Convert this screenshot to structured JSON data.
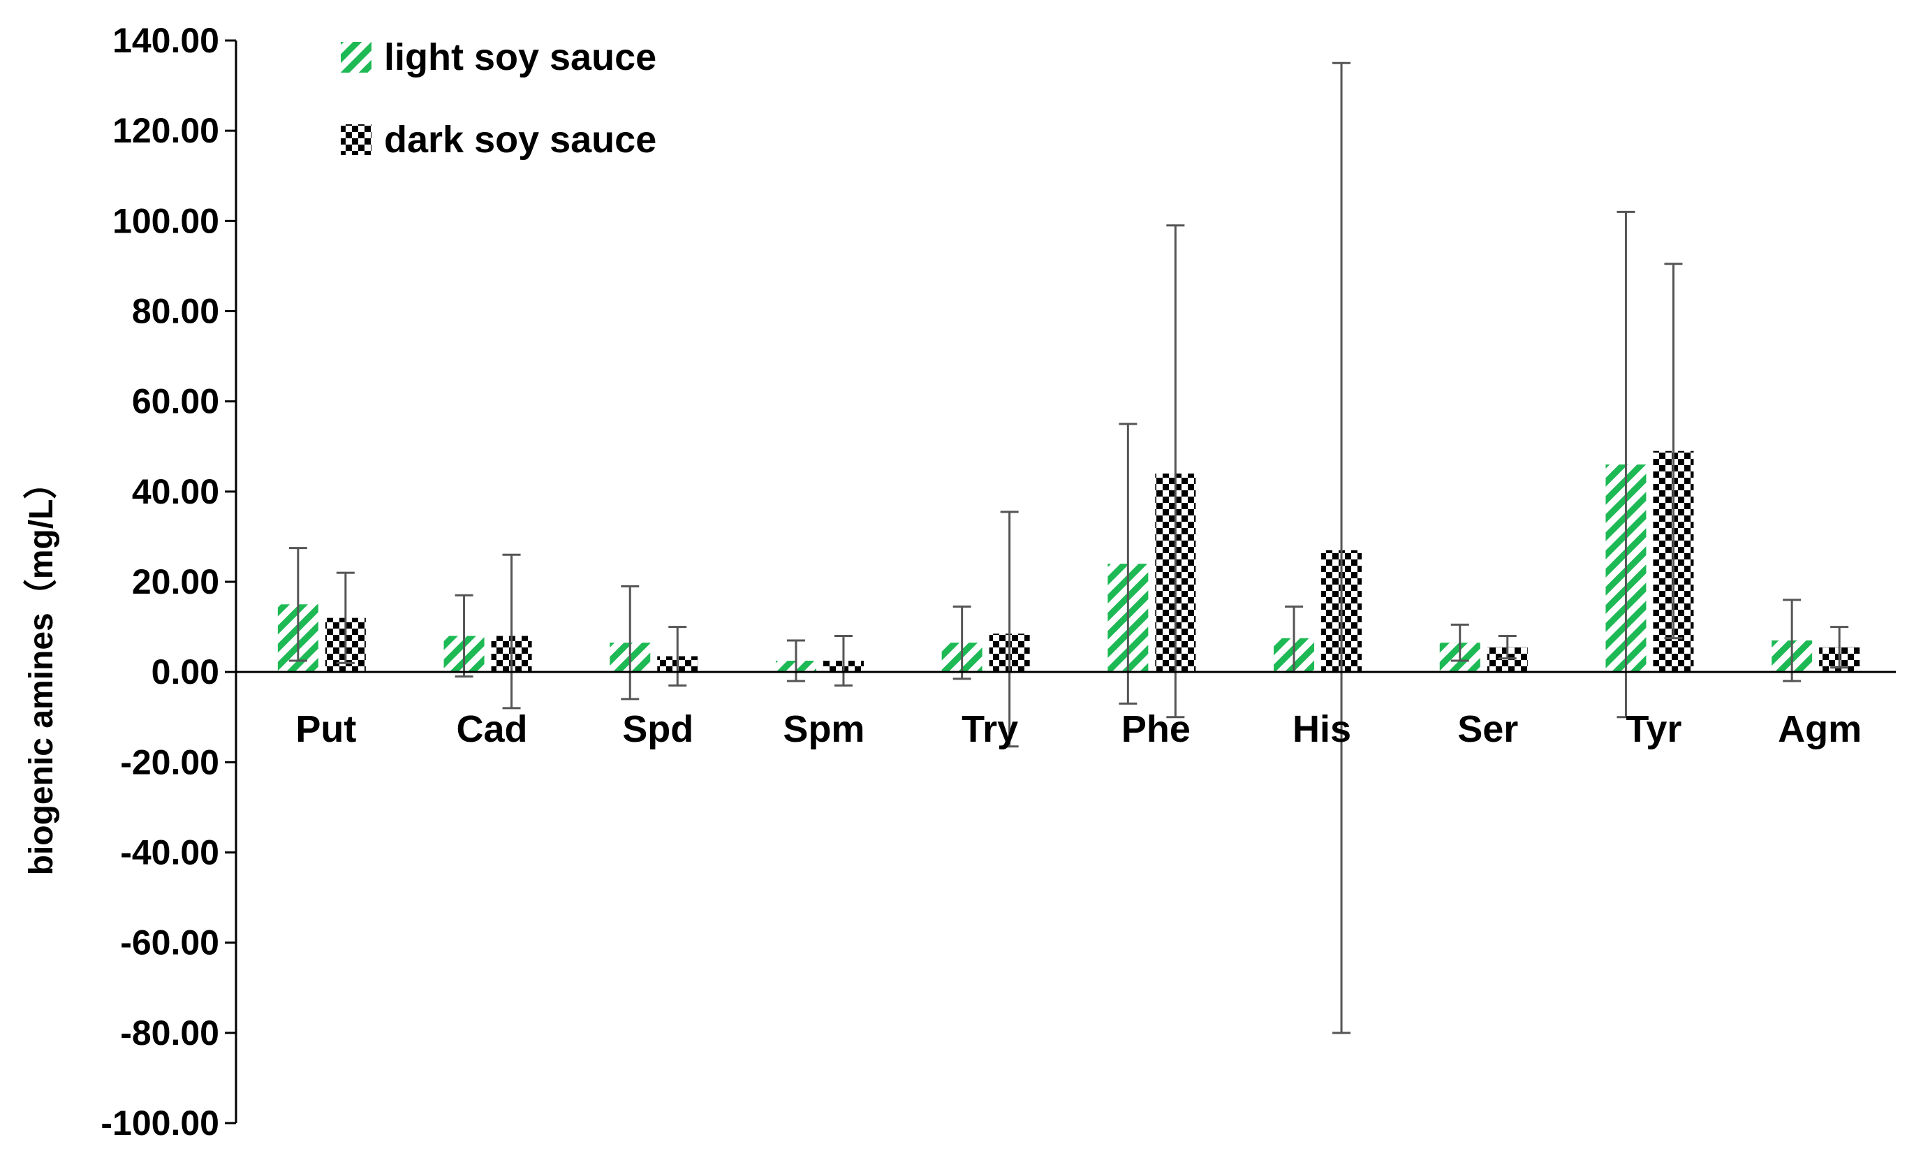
{
  "chart_data": {
    "type": "bar",
    "ylabel": "biogenic amines（mg/L）",
    "ylim": [
      -100,
      140
    ],
    "yticks": [
      -100,
      -80,
      -60,
      -40,
      -20,
      0,
      20,
      40,
      60,
      80,
      100,
      120,
      140
    ],
    "ytick_labels": [
      "-100.00",
      "-80.00",
      "-60.00",
      "-40.00",
      "-20.00",
      "0.00",
      "20.00",
      "40.00",
      "60.00",
      "80.00",
      "100.00",
      "120.00",
      "140.00"
    ],
    "grid": false,
    "legend_position": "top-left",
    "categories": [
      "Put",
      "Cad",
      "Spd",
      "Spm",
      "Try",
      "Phe",
      "His",
      "Ser",
      "Tyr",
      "Agm"
    ],
    "series": [
      {
        "name": "light soy sauce",
        "color": "#1db954",
        "pattern": "diagonal-stripes",
        "values": [
          15.0,
          8.0,
          6.5,
          2.5,
          6.5,
          24.0,
          7.5,
          6.5,
          46.0,
          7.0
        ],
        "err_high": [
          27.5,
          17.0,
          19.0,
          7.0,
          14.5,
          55.0,
          14.5,
          10.5,
          102.0,
          16.0
        ],
        "err_low": [
          2.5,
          -1.0,
          -6.0,
          -2.0,
          -1.5,
          -7.0,
          0.0,
          2.5,
          -10.0,
          -2.0
        ]
      },
      {
        "name": "dark soy sauce",
        "color": "#000000",
        "pattern": "checkerboard",
        "values": [
          12.0,
          8.0,
          3.5,
          2.5,
          8.5,
          44.0,
          27.0,
          5.5,
          49.0,
          5.5
        ],
        "err_high": [
          22.0,
          26.0,
          10.0,
          8.0,
          35.5,
          99.0,
          135.0,
          8.0,
          90.5,
          10.0
        ],
        "err_low": [
          2.0,
          -8.0,
          -3.0,
          -3.0,
          -16.5,
          -10.0,
          -80.0,
          3.0,
          7.5,
          1.0
        ]
      }
    ]
  }
}
